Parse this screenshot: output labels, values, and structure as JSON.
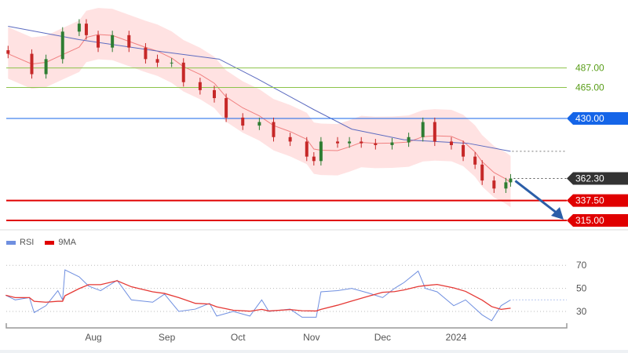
{
  "colors": {
    "up": "#2e7d32",
    "down": "#c62828",
    "ma_fast": "#f08080",
    "ma_slow": "#5c6bc0",
    "band": "#ffd6d6",
    "resistance": "#8bc34a",
    "pivot": "#1565e8",
    "support": "#e00000",
    "last": "#333333",
    "rsi": "#6f8fe0",
    "rsi_ma": "#e53935",
    "arrow": "#2b5ea8"
  },
  "chart_data": [
    {
      "type": "candlestick",
      "levels": [
        {
          "value": 487.0,
          "label": "487.00",
          "kind": "resistance"
        },
        {
          "value": 465.0,
          "label": "465.00",
          "kind": "resistance"
        },
        {
          "value": 430.0,
          "label": "430.00",
          "kind": "pivot"
        },
        {
          "value": 362.3,
          "label": "362.30",
          "kind": "last"
        },
        {
          "value": 337.5,
          "label": "337.50",
          "kind": "support"
        },
        {
          "value": 315.0,
          "label": "315.00",
          "kind": "support"
        }
      ],
      "close": [
        [
          "2023-06-26",
          503
        ],
        [
          "2023-07-06",
          480
        ],
        [
          "2023-07-12",
          497
        ],
        [
          "2023-07-19",
          528
        ],
        [
          "2023-07-26",
          537
        ],
        [
          "2023-07-29",
          524
        ],
        [
          "2023-08-03",
          510
        ],
        [
          "2023-08-09",
          524
        ],
        [
          "2023-08-16",
          510
        ],
        [
          "2023-08-23",
          497
        ],
        [
          "2023-08-28",
          493
        ],
        [
          "2023-09-03",
          493
        ],
        [
          "2023-09-08",
          471
        ],
        [
          "2023-09-15",
          462
        ],
        [
          "2023-09-21",
          453
        ],
        [
          "2023-09-26",
          431
        ],
        [
          "2023-10-03",
          422
        ],
        [
          "2023-10-10",
          426
        ],
        [
          "2023-10-16",
          409
        ],
        [
          "2023-10-23",
          404
        ],
        [
          "2023-10-30",
          387
        ],
        [
          "2023-11-02",
          382
        ],
        [
          "2023-11-05",
          404
        ],
        [
          "2023-11-12",
          402
        ],
        [
          "2023-11-17",
          404
        ],
        [
          "2023-11-22",
          402
        ],
        [
          "2023-11-28",
          400
        ],
        [
          "2023-12-05",
          403
        ],
        [
          "2023-12-12",
          409
        ],
        [
          "2023-12-18",
          426
        ],
        [
          "2023-12-23",
          404
        ],
        [
          "2023-12-30",
          400
        ],
        [
          "2024-01-04",
          387
        ],
        [
          "2024-01-09",
          378
        ],
        [
          "2024-01-12",
          360
        ],
        [
          "2024-01-17",
          351
        ],
        [
          "2024-01-22",
          358
        ],
        [
          "2024-01-24",
          362.3
        ]
      ],
      "slow_ma": [
        [
          "2023-06-26",
          534
        ],
        [
          "2023-07-26",
          519
        ],
        [
          "2023-08-28",
          506
        ],
        [
          "2023-09-23",
          497
        ],
        [
          "2023-10-09",
          475
        ],
        [
          "2023-11-02",
          440
        ],
        [
          "2023-11-18",
          418
        ],
        [
          "2023-12-10",
          406
        ],
        [
          "2024-01-06",
          402
        ],
        [
          "2024-01-24",
          393
        ]
      ],
      "x_ticks": [
        "Aug",
        "Sep",
        "Oct",
        "Nov",
        "Dec",
        "2024"
      ],
      "x_tick_dates": [
        "2023-08-01",
        "2023-09-01",
        "2023-10-01",
        "2023-11-01",
        "2023-12-01",
        "2024-01-01"
      ]
    },
    {
      "type": "line",
      "legend": [
        {
          "name": "RSI"
        },
        {
          "name": "9MA"
        }
      ],
      "y_ticks": [
        70,
        50,
        30
      ],
      "last_value": 40,
      "rsi": [
        [
          "2023-06-25",
          44
        ],
        [
          "2023-06-29",
          40
        ],
        [
          "2023-07-05",
          42
        ],
        [
          "2023-07-07",
          29
        ],
        [
          "2023-07-12",
          35
        ],
        [
          "2023-07-17",
          48
        ],
        [
          "2023-07-19",
          40
        ],
        [
          "2023-07-20",
          66
        ],
        [
          "2023-07-26",
          60
        ],
        [
          "2023-07-30",
          52
        ],
        [
          "2023-08-04",
          48
        ],
        [
          "2023-08-11",
          57
        ],
        [
          "2023-08-17",
          40
        ],
        [
          "2023-08-26",
          38
        ],
        [
          "2023-08-31",
          45
        ],
        [
          "2023-09-06",
          30
        ],
        [
          "2023-09-13",
          32
        ],
        [
          "2023-09-19",
          37
        ],
        [
          "2023-09-22",
          26
        ],
        [
          "2023-09-29",
          30
        ],
        [
          "2023-10-06",
          26
        ],
        [
          "2023-10-11",
          40
        ],
        [
          "2023-10-14",
          30
        ],
        [
          "2023-10-23",
          32
        ],
        [
          "2023-10-28",
          25
        ],
        [
          "2023-11-03",
          25
        ],
        [
          "2023-11-05",
          47
        ],
        [
          "2023-11-12",
          48
        ],
        [
          "2023-11-18",
          50
        ],
        [
          "2023-11-25",
          46
        ],
        [
          "2023-12-01",
          42
        ],
        [
          "2023-12-06",
          50
        ],
        [
          "2023-12-10",
          55
        ],
        [
          "2023-12-16",
          65
        ],
        [
          "2023-12-19",
          50
        ],
        [
          "2023-12-24",
          47
        ],
        [
          "2023-12-31",
          35
        ],
        [
          "2024-01-05",
          40
        ],
        [
          "2024-01-12",
          27
        ],
        [
          "2024-01-16",
          22
        ],
        [
          "2024-01-20",
          35
        ],
        [
          "2024-01-24",
          40
        ]
      ]
    }
  ]
}
